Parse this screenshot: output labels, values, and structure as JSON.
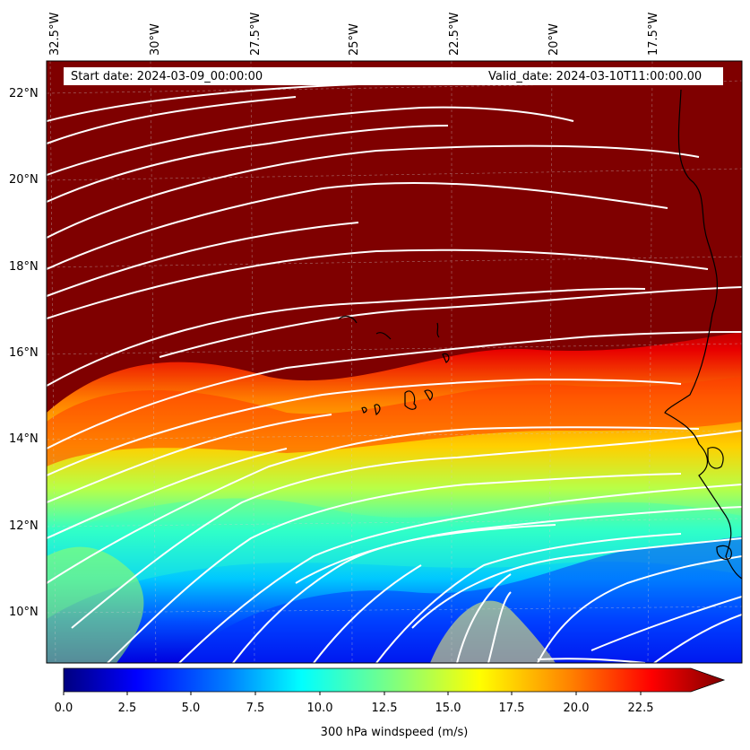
{
  "map": {
    "start_date": "Start date: 2024-03-09_00:00:00",
    "valid_date": "Valid_date: 2024-03-10T11:00:00.00",
    "lon_labels": [
      "32.5°W",
      "30°W",
      "27.5°W",
      "25°W",
      "22.5°W",
      "20°W",
      "17.5°W"
    ],
    "lat_labels": [
      "22°N",
      "20°N",
      "18°N",
      "16°N",
      "14°N",
      "12°N",
      "10°N"
    ]
  },
  "colorbar": {
    "label": "300 hPa windspeed (m/s)",
    "ticks": [
      "0.0",
      "2.5",
      "5.0",
      "7.5",
      "10.0",
      "12.5",
      "15.0",
      "17.5",
      "20.0",
      "22.5"
    ],
    "colors": [
      "#00007f",
      "#0000ff",
      "#007fff",
      "#00ffff",
      "#7fff7f",
      "#ffff00",
      "#ff7f00",
      "#ff0000",
      "#7f0000"
    ]
  }
}
